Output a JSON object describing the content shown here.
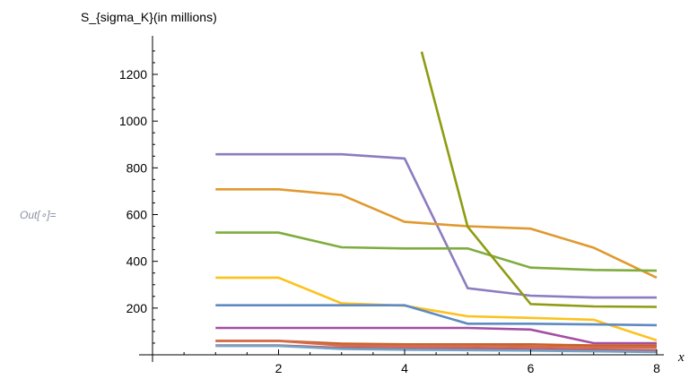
{
  "cell": {
    "out_label": "Out[∘]="
  },
  "chart_data": {
    "type": "line",
    "title": "",
    "ylabel": "S_{sigma_K}(in millions)",
    "xlabel": "x",
    "xlim": [
      0,
      8
    ],
    "ylim": [
      0,
      1350
    ],
    "x_ticks": [
      2,
      4,
      6,
      8
    ],
    "y_ticks": [
      200,
      400,
      600,
      800,
      1000,
      1200
    ],
    "grid": false,
    "series": [
      {
        "color": "#8c7cc0",
        "x": [
          1,
          2,
          3,
          4,
          5,
          6,
          7,
          8
        ],
        "values": [
          858,
          858,
          858,
          840,
          285,
          253,
          245,
          245
        ]
      },
      {
        "color": "#e0992f",
        "x": [
          1,
          2,
          3,
          4,
          5,
          6,
          7,
          8
        ],
        "values": [
          708,
          708,
          684,
          569,
          550,
          540,
          458,
          330
        ]
      },
      {
        "color": "#7fac3e",
        "x": [
          1,
          2,
          3,
          4,
          5,
          6,
          7,
          8
        ],
        "values": [
          523,
          523,
          460,
          455,
          455,
          373,
          363,
          360
        ]
      },
      {
        "color": "#fcc21c",
        "x": [
          1,
          2,
          3,
          4,
          5,
          6,
          7,
          8
        ],
        "values": [
          330,
          330,
          220,
          210,
          165,
          158,
          150,
          62
        ]
      },
      {
        "color": "#5d8ac2",
        "x": [
          1,
          2,
          3,
          4,
          5,
          6,
          7,
          8
        ],
        "values": [
          212,
          212,
          212,
          212,
          133,
          133,
          130,
          127
        ]
      },
      {
        "color": "#a34fa1",
        "x": [
          1,
          2,
          3,
          4,
          5,
          6,
          7,
          8
        ],
        "values": [
          115,
          115,
          115,
          115,
          115,
          108,
          50,
          50
        ]
      },
      {
        "color": "#c8602a",
        "x": [
          1,
          2,
          3,
          4,
          5,
          6,
          7,
          8
        ],
        "values": [
          60,
          60,
          48,
          45,
          45,
          45,
          40,
          40
        ]
      },
      {
        "color": "#d16d4a",
        "x": [
          1,
          2,
          3,
          4,
          5,
          6,
          7,
          8
        ],
        "values": [
          60,
          60,
          40,
          38,
          38,
          35,
          32,
          32
        ]
      },
      {
        "color": "#c45866",
        "x": [
          1,
          2,
          3,
          4,
          5,
          6,
          7,
          8
        ],
        "values": [
          40,
          40,
          30,
          28,
          28,
          25,
          22,
          20
        ]
      },
      {
        "color": "#6ea4c8",
        "x": [
          1,
          2,
          3,
          4,
          5,
          6,
          7,
          8
        ],
        "values": [
          38,
          38,
          25,
          22,
          20,
          18,
          15,
          12
        ]
      },
      {
        "color": "#8f9b12",
        "x": [
          4.27,
          5,
          6,
          7,
          8
        ],
        "values": [
          1297,
          548,
          217,
          207,
          205
        ]
      }
    ]
  }
}
